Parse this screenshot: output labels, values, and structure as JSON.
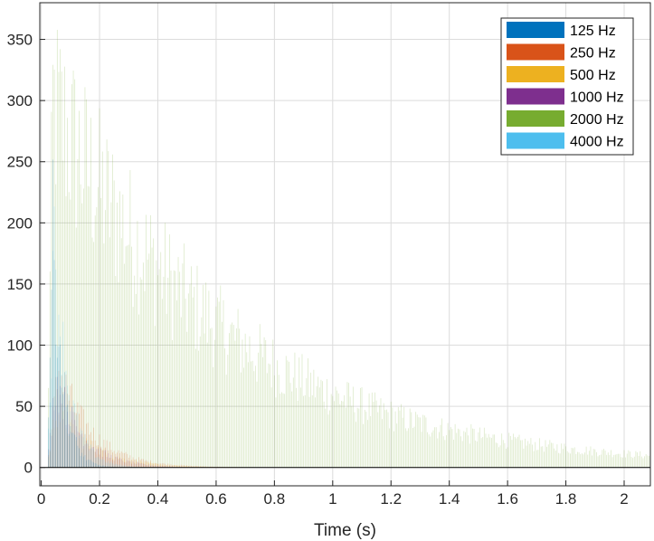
{
  "chart_data": {
    "type": "bar",
    "title": "",
    "xlabel": "Time (s)",
    "ylabel": "",
    "xlim": [
      -0.005,
      2.09
    ],
    "ylim": [
      -15,
      380
    ],
    "xticks": [
      0,
      0.2,
      0.4,
      0.6,
      0.8,
      1,
      1.2,
      1.4,
      1.6,
      1.8,
      2
    ],
    "xtick_labels": [
      "0",
      "0.2",
      "0.4",
      "0.6",
      "0.8",
      "1",
      "1.2",
      "1.4",
      "1.6",
      "1.8",
      "2"
    ],
    "yticks": [
      0,
      50,
      100,
      150,
      200,
      250,
      300,
      350
    ],
    "ytick_labels": [
      "0",
      "50",
      "100",
      "150",
      "200",
      "250",
      "300",
      "350"
    ],
    "grid": true,
    "legend_position": "top-right",
    "bin_width_s": 0.005,
    "series": [
      {
        "name": "125 Hz",
        "color": "#0072BD",
        "onset_s": 0.02,
        "peak": 240,
        "peak_time_s": 0.04,
        "decay_time_constant_s": 0.035
      },
      {
        "name": "250 Hz",
        "color": "#D95319",
        "onset_s": 0.02,
        "peak": 100,
        "peak_time_s": 0.06,
        "decay_time_constant_s": 0.11
      },
      {
        "name": "500 Hz",
        "color": "#EDB120",
        "onset_s": 0.02,
        "peak": 60,
        "peak_time_s": 0.05,
        "decay_time_constant_s": 0.12
      },
      {
        "name": "1000 Hz",
        "color": "#7E2F8E",
        "onset_s": 0.02,
        "peak": 90,
        "peak_time_s": 0.05,
        "decay_time_constant_s": 0.09
      },
      {
        "name": "2000 Hz",
        "color": "#77AC30",
        "onset_s": 0.02,
        "peak": 370,
        "peak_time_s": 0.04,
        "decay_time_constant_s": 0.6
      },
      {
        "name": "4000 Hz",
        "color": "#4DBEEE",
        "onset_s": 0.02,
        "peak": 220,
        "peak_time_s": 0.045,
        "decay_time_constant_s": 0.05
      }
    ]
  }
}
